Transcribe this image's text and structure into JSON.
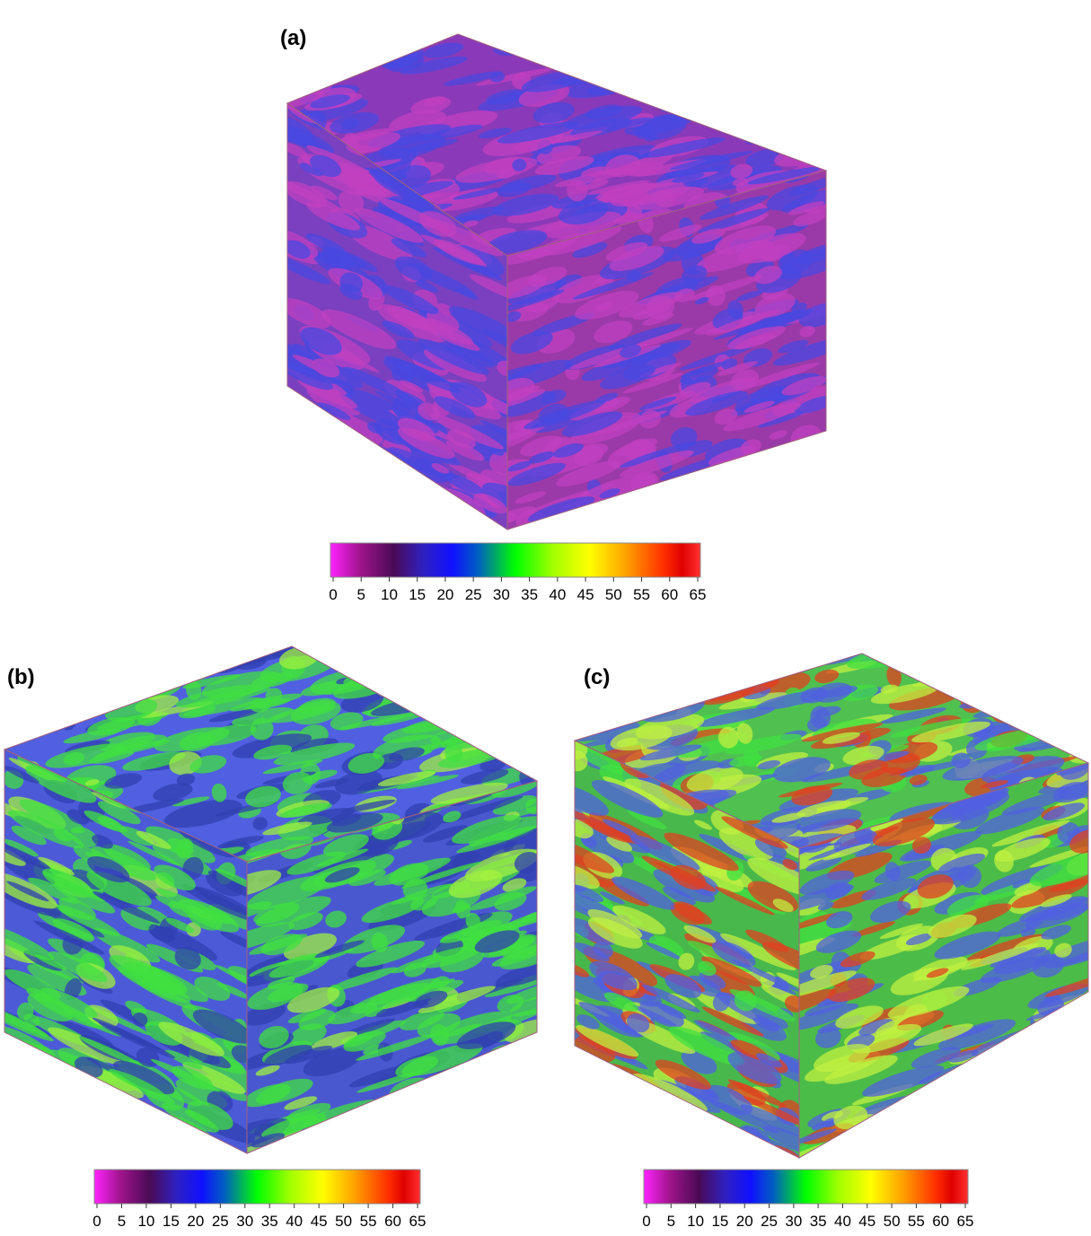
{
  "panels": [
    {
      "label": "(a)",
      "colorbar": {
        "ticks": [
          0,
          5,
          10,
          15,
          20,
          25,
          30,
          35,
          40,
          45,
          50,
          55,
          60,
          65
        ]
      }
    },
    {
      "label": "(b)",
      "colorbar": {
        "ticks": [
          0,
          5,
          10,
          15,
          20,
          25,
          30,
          35,
          40,
          45,
          50,
          55,
          60,
          65
        ]
      }
    },
    {
      "label": "(c)",
      "colorbar": {
        "ticks": [
          0,
          5,
          10,
          15,
          20,
          25,
          30,
          35,
          40,
          45,
          50,
          55,
          60,
          65
        ]
      }
    }
  ]
}
